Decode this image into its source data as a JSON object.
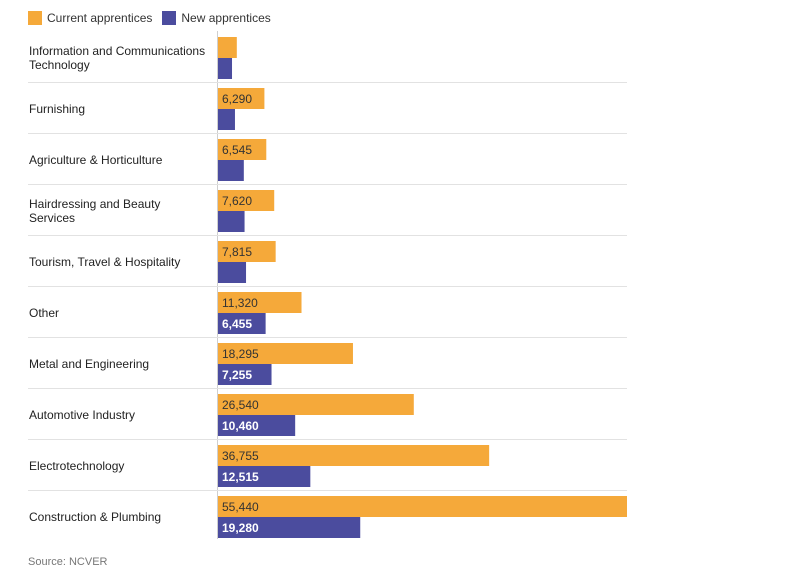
{
  "chart_data": {
    "type": "bar",
    "orientation": "horizontal",
    "categories": [
      "Information and Communications Technology",
      "Furnishing",
      "Agriculture & Horticulture",
      "Hairdressing and Beauty Services",
      "Tourism, Travel & Hospitality",
      "Other",
      "Metal and Engineering",
      "Automotive Industry",
      "Electrotechnology",
      "Construction & Plumbing"
    ],
    "series": [
      {
        "name": "Current apprentices",
        "color": "#f5a93a",
        "values": [
          2550,
          6290,
          6545,
          7620,
          7815,
          11320,
          18295,
          26540,
          36755,
          55440
        ],
        "labels": [
          "",
          "6,290",
          "6,545",
          "7,620",
          "7,815",
          "11,320",
          "18,295",
          "26,540",
          "36,755",
          "55,440"
        ]
      },
      {
        "name": "New apprentices",
        "color": "#4b4c9e",
        "values": [
          1900,
          2300,
          3500,
          3600,
          3800,
          6455,
          7255,
          10460,
          12515,
          19280
        ],
        "labels": [
          "",
          "",
          "",
          "",
          "",
          "6,455",
          "7,255",
          "10,460",
          "12,515",
          "19,280"
        ]
      }
    ],
    "xlim": [
      0,
      55440
    ],
    "grid": false,
    "legend": "top-left"
  },
  "source": "Source: NCVER"
}
